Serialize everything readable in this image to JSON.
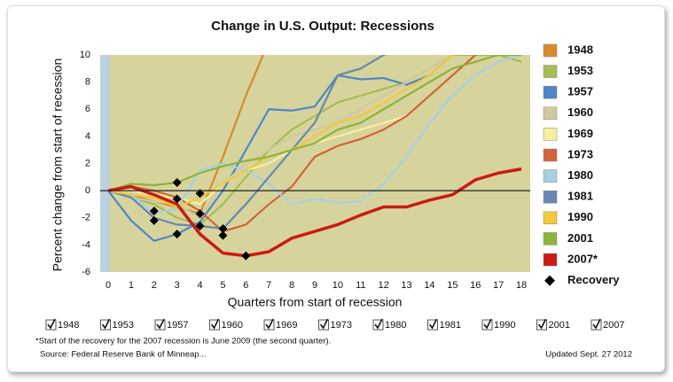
{
  "chart_data": {
    "type": "line",
    "title": "Change in U.S. Output: Recessions",
    "x_label": "Quarters from start of recession",
    "y_label": "Percent change from start of recession",
    "x": [
      0,
      1,
      2,
      3,
      4,
      5,
      6,
      7,
      8,
      9,
      10,
      11,
      12,
      13,
      14,
      15,
      16,
      17,
      18
    ],
    "xlim": [
      0,
      18
    ],
    "xticks": [
      0,
      1,
      2,
      3,
      4,
      5,
      6,
      7,
      8,
      9,
      10,
      11,
      12,
      13,
      14,
      15,
      16,
      17,
      18
    ],
    "ylim": [
      -6,
      10
    ],
    "yticks": [
      -6,
      -4,
      -2,
      0,
      2,
      4,
      6,
      8,
      10
    ],
    "grid": false,
    "series": [
      {
        "name": "1948",
        "color": "#d98a2b",
        "values": [
          0,
          -0.3,
          -0.8,
          -1.2,
          -1.7,
          2.5,
          7,
          11,
          null,
          null,
          null,
          null,
          null,
          null,
          null,
          null,
          null,
          null,
          null
        ]
      },
      {
        "name": "1953",
        "color": "#a5bd52",
        "values": [
          0,
          -0.5,
          -1,
          -2,
          -2.5,
          -1,
          1,
          3,
          4.5,
          5.5,
          6.5,
          7,
          7.5,
          8,
          9,
          10,
          10,
          10,
          9.5
        ]
      },
      {
        "name": "1957",
        "color": "#4e86c6",
        "values": [
          0,
          -2.2,
          -3.7,
          -3.2,
          -2.3,
          0,
          3,
          6,
          5.9,
          6.2,
          8.5,
          8.2,
          8.3,
          7.8,
          8.5,
          10,
          10.5,
          null,
          null
        ]
      },
      {
        "name": "1960",
        "color": "#cfc9a0",
        "values": [
          0,
          -0.5,
          -0.8,
          -1,
          -2,
          0.5,
          2,
          3,
          4,
          4.5,
          5,
          6,
          7,
          8,
          9,
          10,
          10.5,
          null,
          null
        ]
      },
      {
        "name": "1969",
        "color": "#f3f1a0",
        "values": [
          0,
          0,
          -0.3,
          -0.5,
          -1,
          0.5,
          1.5,
          2,
          3,
          3.5,
          4,
          4.5,
          5,
          5.5,
          7,
          8.5,
          10,
          10.5,
          null
        ]
      },
      {
        "name": "1973",
        "color": "#d0643a",
        "values": [
          0,
          0.3,
          0,
          -0.5,
          -1.5,
          -3,
          -2.5,
          -1,
          0.3,
          2.5,
          3.3,
          3.8,
          4.5,
          5.5,
          7,
          8.5,
          10,
          10.5,
          null
        ]
      },
      {
        "name": "1980",
        "color": "#a6d0e4",
        "values": [
          0,
          -0.3,
          -1.7,
          -1.3,
          1.5,
          2,
          1.5,
          0.5,
          -1,
          -0.6,
          -0.9,
          -0.8,
          0.5,
          2.5,
          5,
          7,
          8.5,
          9.5,
          10
        ]
      },
      {
        "name": "1981",
        "color": "#6688b0",
        "values": [
          0,
          -0.5,
          -2,
          -2.5,
          -2.6,
          -2.8,
          -1,
          1,
          3,
          5,
          8.5,
          9,
          10,
          10.5,
          null,
          null,
          null,
          null,
          null
        ]
      },
      {
        "name": "1990",
        "color": "#f2c93a",
        "values": [
          0,
          -0.3,
          -0.5,
          -1.2,
          -0.5,
          0.5,
          1.5,
          2.5,
          3,
          4,
          5,
          5.5,
          6.5,
          7.5,
          8.5,
          10,
          10.5,
          null,
          null
        ]
      },
      {
        "name": "2001",
        "color": "#8fb23a",
        "values": [
          0,
          0.5,
          0.4,
          0.6,
          1.3,
          1.8,
          2.2,
          2.5,
          3,
          3.5,
          4.5,
          5,
          6,
          7,
          8,
          9,
          9.5,
          10,
          10
        ]
      },
      {
        "name": "2007*",
        "color": "#cc1a14",
        "values": [
          0,
          0.3,
          -0.3,
          -1,
          -3.2,
          -4.6,
          -4.8,
          -4.5,
          -3.5,
          -3,
          -2.5,
          -1.8,
          -1.2,
          -1.2,
          -0.7,
          -0.3,
          0.8,
          1.3,
          1.6
        ]
      }
    ],
    "recovery": {
      "name": "Recovery",
      "color": "#000000",
      "x": [
        3,
        4,
        2,
        4,
        2,
        3,
        4,
        5,
        5,
        6,
        3
      ],
      "y": [
        0.6,
        -0.2,
        -1.5,
        -1.7,
        -2.2,
        -3.2,
        -2.6,
        -3.3,
        -2.8,
        -4.8,
        -0.6
      ]
    },
    "checkboxes": [
      "1948",
      "1953",
      "1957",
      "1960",
      "1969",
      "1973",
      "1980",
      "1981",
      "1990",
      "2001",
      "2007"
    ],
    "footnote": "*Start of the recovery for the 2007 recession is June 2009 (the second quarter).",
    "source": "Source: Federal Reserve Bank of Minneap...",
    "updated": "Updated Sept. 27 2012"
  }
}
